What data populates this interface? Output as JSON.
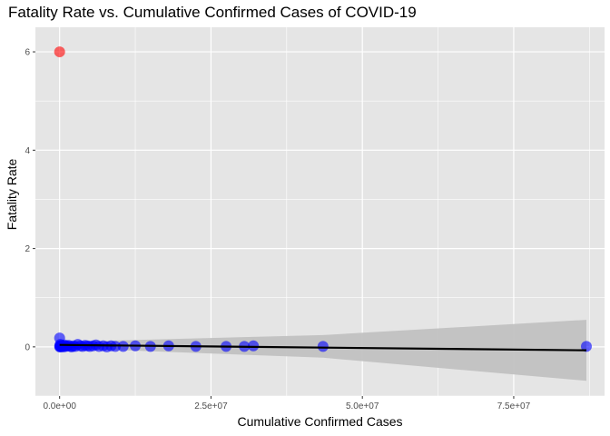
{
  "chart_data": {
    "type": "scatter",
    "title": "Fatality Rate vs. Cumulative Confirmed Cases of COVID-19",
    "xlabel": "Cumulative Confirmed Cases",
    "ylabel": "Fatality Rate",
    "xlim": [
      -4000000,
      90000000
    ],
    "ylim": [
      -1.0,
      6.5
    ],
    "x_ticks": [
      0,
      25000000,
      50000000,
      75000000
    ],
    "x_tick_labels": [
      "0.0e+00",
      "2.5e+07",
      "5.0e+07",
      "7.5e+07"
    ],
    "y_ticks": [
      0,
      2,
      4,
      6
    ],
    "y_tick_labels": [
      "0",
      "2",
      "4",
      "6"
    ],
    "grid": true,
    "legend": "none",
    "colors": {
      "panel": "#e5e5e5",
      "grid": "#ffffff",
      "points": "#0000ff",
      "outlier": "#ff0000",
      "trend": "#000000",
      "band": "#bfbfbf"
    },
    "series": [
      {
        "color": "#0000ff",
        "points": [
          [
            0,
            0.18
          ],
          [
            10000,
            0.0
          ],
          [
            30000,
            0.02
          ],
          [
            60000,
            0.01
          ],
          [
            100000,
            0.05
          ],
          [
            150000,
            0.02
          ],
          [
            200000,
            0.0
          ],
          [
            300000,
            0.03
          ],
          [
            400000,
            0.01
          ],
          [
            500000,
            0.02
          ],
          [
            650000,
            0.0
          ],
          [
            800000,
            0.04
          ],
          [
            1000000,
            0.01
          ],
          [
            1200000,
            0.02
          ],
          [
            1500000,
            0.03
          ],
          [
            1800000,
            0.01
          ],
          [
            2000000,
            0.0
          ],
          [
            2300000,
            0.02
          ],
          [
            2600000,
            0.01
          ],
          [
            3000000,
            0.05
          ],
          [
            3400000,
            0.02
          ],
          [
            3800000,
            0.01
          ],
          [
            4200000,
            0.03
          ],
          [
            4600000,
            0.02
          ],
          [
            5000000,
            0.01
          ],
          [
            5500000,
            0.02
          ],
          [
            6000000,
            0.04
          ],
          [
            6500000,
            0.01
          ],
          [
            7200000,
            0.02
          ],
          [
            7800000,
            0.0
          ],
          [
            8500000,
            0.02
          ],
          [
            9200000,
            0.01
          ],
          [
            10500000,
            0.01
          ],
          [
            12500000,
            0.02
          ],
          [
            15000000,
            0.01
          ],
          [
            18000000,
            0.02
          ],
          [
            22500000,
            0.01
          ],
          [
            27500000,
            0.01
          ],
          [
            30500000,
            0.01
          ],
          [
            32000000,
            0.02
          ],
          [
            43500000,
            0.01
          ],
          [
            87000000,
            0.01
          ]
        ]
      },
      {
        "color": "#ff0000",
        "points": [
          [
            0,
            6.0
          ]
        ]
      }
    ],
    "trend_line": {
      "x": [
        0,
        87000000
      ],
      "y": [
        0.04,
        -0.07
      ]
    },
    "confidence_band": {
      "x": [
        0,
        43500000,
        87000000
      ],
      "upper": [
        0.1,
        0.24,
        0.55
      ],
      "lower": [
        -0.02,
        -0.22,
        -0.69
      ]
    }
  }
}
